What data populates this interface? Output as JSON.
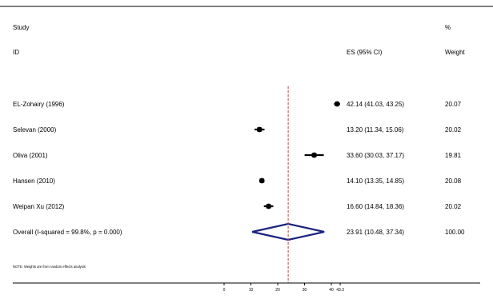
{
  "chart_data": {
    "type": "forest",
    "headers": {
      "study_line1": "Study",
      "study_line2": "ID",
      "es": "ES (95% CI)",
      "weight_line1": "%",
      "weight_line2": "Weight"
    },
    "studies": [
      {
        "label": "EL-Zohairy (1996)",
        "es": 42.14,
        "lo": 41.03,
        "hi": 43.25,
        "es_text": "42.14 (41.03, 43.25)",
        "weight": 20.07,
        "weight_text": "20.07"
      },
      {
        "label": "Selevan (2000)",
        "es": 13.2,
        "lo": 11.34,
        "hi": 15.06,
        "es_text": "13.20 (11.34, 15.06)",
        "weight": 20.02,
        "weight_text": "20.02"
      },
      {
        "label": "Oliva (2001)",
        "es": 33.6,
        "lo": 30.03,
        "hi": 37.17,
        "es_text": "33.60 (30.03, 37.17)",
        "weight": 19.81,
        "weight_text": "19.81"
      },
      {
        "label": "Hansen (2010)",
        "es": 14.1,
        "lo": 13.35,
        "hi": 14.85,
        "es_text": "14.10 (13.35, 14.85)",
        "weight": 20.08,
        "weight_text": "20.08"
      },
      {
        "label": "Weipan Xu (2012)",
        "es": 16.6,
        "lo": 14.84,
        "hi": 18.36,
        "es_text": "16.60 (14.84, 18.36)",
        "weight": 20.02,
        "weight_text": "20.02"
      }
    ],
    "overall": {
      "label": "Overall  (I-squared = 99.8%, p = 0.000)",
      "es": 23.91,
      "lo": 10.48,
      "hi": 37.34,
      "es_text": "23.91 (10.48, 37.34)",
      "weight_text": "100.00"
    },
    "x_ticks": [
      0,
      10,
      20,
      30,
      40,
      43.3
    ],
    "x_tick_labels": [
      "0",
      "10",
      "20",
      "30",
      "40",
      "43.3"
    ],
    "reference_line": 23.91,
    "note": "NOTE: Weights are from random effects analysis",
    "colors": {
      "marker": "#000000",
      "diamond": "#1a237e",
      "reference": "#c0392b",
      "axis": "#000000"
    }
  }
}
